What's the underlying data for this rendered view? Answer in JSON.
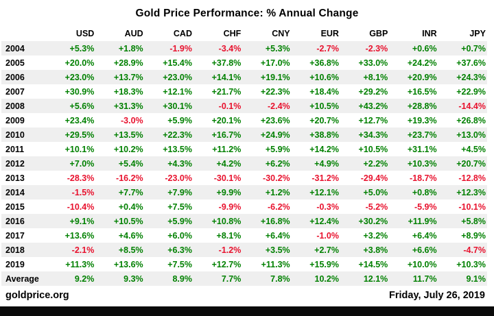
{
  "title": "Gold Price Performance: % Annual Change",
  "footer": {
    "source": "goldprice.org",
    "date": "Friday, July 26, 2019"
  },
  "colors": {
    "positive": "#008000",
    "negative": "#e8112d",
    "stripe": "#efefef",
    "bottom_bar": "#0a0a0a"
  },
  "chart_data": {
    "type": "table",
    "title": "Gold Price Performance: % Annual Change",
    "columns": [
      "USD",
      "AUD",
      "CAD",
      "CHF",
      "CNY",
      "EUR",
      "GBP",
      "INR",
      "JPY"
    ],
    "rows": [
      {
        "label": "2004",
        "values": [
          "+5.3%",
          "+1.8%",
          "-1.9%",
          "-3.4%",
          "+5.3%",
          "-2.7%",
          "-2.3%",
          "+0.6%",
          "+0.7%"
        ]
      },
      {
        "label": "2005",
        "values": [
          "+20.0%",
          "+28.9%",
          "+15.4%",
          "+37.8%",
          "+17.0%",
          "+36.8%",
          "+33.0%",
          "+24.2%",
          "+37.6%"
        ]
      },
      {
        "label": "2006",
        "values": [
          "+23.0%",
          "+13.7%",
          "+23.0%",
          "+14.1%",
          "+19.1%",
          "+10.6%",
          "+8.1%",
          "+20.9%",
          "+24.3%"
        ]
      },
      {
        "label": "2007",
        "values": [
          "+30.9%",
          "+18.3%",
          "+12.1%",
          "+21.7%",
          "+22.3%",
          "+18.4%",
          "+29.2%",
          "+16.5%",
          "+22.9%"
        ]
      },
      {
        "label": "2008",
        "values": [
          "+5.6%",
          "+31.3%",
          "+30.1%",
          "-0.1%",
          "-2.4%",
          "+10.5%",
          "+43.2%",
          "+28.8%",
          "-14.4%"
        ]
      },
      {
        "label": "2009",
        "values": [
          "+23.4%",
          "-3.0%",
          "+5.9%",
          "+20.1%",
          "+23.6%",
          "+20.7%",
          "+12.7%",
          "+19.3%",
          "+26.8%"
        ]
      },
      {
        "label": "2010",
        "values": [
          "+29.5%",
          "+13.5%",
          "+22.3%",
          "+16.7%",
          "+24.9%",
          "+38.8%",
          "+34.3%",
          "+23.7%",
          "+13.0%"
        ]
      },
      {
        "label": "2011",
        "values": [
          "+10.1%",
          "+10.2%",
          "+13.5%",
          "+11.2%",
          "+5.9%",
          "+14.2%",
          "+10.5%",
          "+31.1%",
          "+4.5%"
        ]
      },
      {
        "label": "2012",
        "values": [
          "+7.0%",
          "+5.4%",
          "+4.3%",
          "+4.2%",
          "+6.2%",
          "+4.9%",
          "+2.2%",
          "+10.3%",
          "+20.7%"
        ]
      },
      {
        "label": "2013",
        "values": [
          "-28.3%",
          "-16.2%",
          "-23.0%",
          "-30.1%",
          "-30.2%",
          "-31.2%",
          "-29.4%",
          "-18.7%",
          "-12.8%"
        ]
      },
      {
        "label": "2014",
        "values": [
          "-1.5%",
          "+7.7%",
          "+7.9%",
          "+9.9%",
          "+1.2%",
          "+12.1%",
          "+5.0%",
          "+0.8%",
          "+12.3%"
        ]
      },
      {
        "label": "2015",
        "values": [
          "-10.4%",
          "+0.4%",
          "+7.5%",
          "-9.9%",
          "-6.2%",
          "-0.3%",
          "-5.2%",
          "-5.9%",
          "-10.1%"
        ]
      },
      {
        "label": "2016",
        "values": [
          "+9.1%",
          "+10.5%",
          "+5.9%",
          "+10.8%",
          "+16.8%",
          "+12.4%",
          "+30.2%",
          "+11.9%",
          "+5.8%"
        ]
      },
      {
        "label": "2017",
        "values": [
          "+13.6%",
          "+4.6%",
          "+6.0%",
          "+8.1%",
          "+6.4%",
          "-1.0%",
          "+3.2%",
          "+6.4%",
          "+8.9%"
        ]
      },
      {
        "label": "2018",
        "values": [
          "-2.1%",
          "+8.5%",
          "+6.3%",
          "-1.2%",
          "+3.5%",
          "+2.7%",
          "+3.8%",
          "+6.6%",
          "-4.7%"
        ]
      },
      {
        "label": "2019",
        "values": [
          "+11.3%",
          "+13.6%",
          "+7.5%",
          "+12.7%",
          "+11.3%",
          "+15.9%",
          "+14.5%",
          "+10.0%",
          "+10.3%"
        ]
      },
      {
        "label": "Average",
        "values": [
          "9.2%",
          "9.3%",
          "8.9%",
          "7.7%",
          "7.8%",
          "10.2%",
          "12.1%",
          "11.7%",
          "9.1%"
        ]
      }
    ]
  }
}
